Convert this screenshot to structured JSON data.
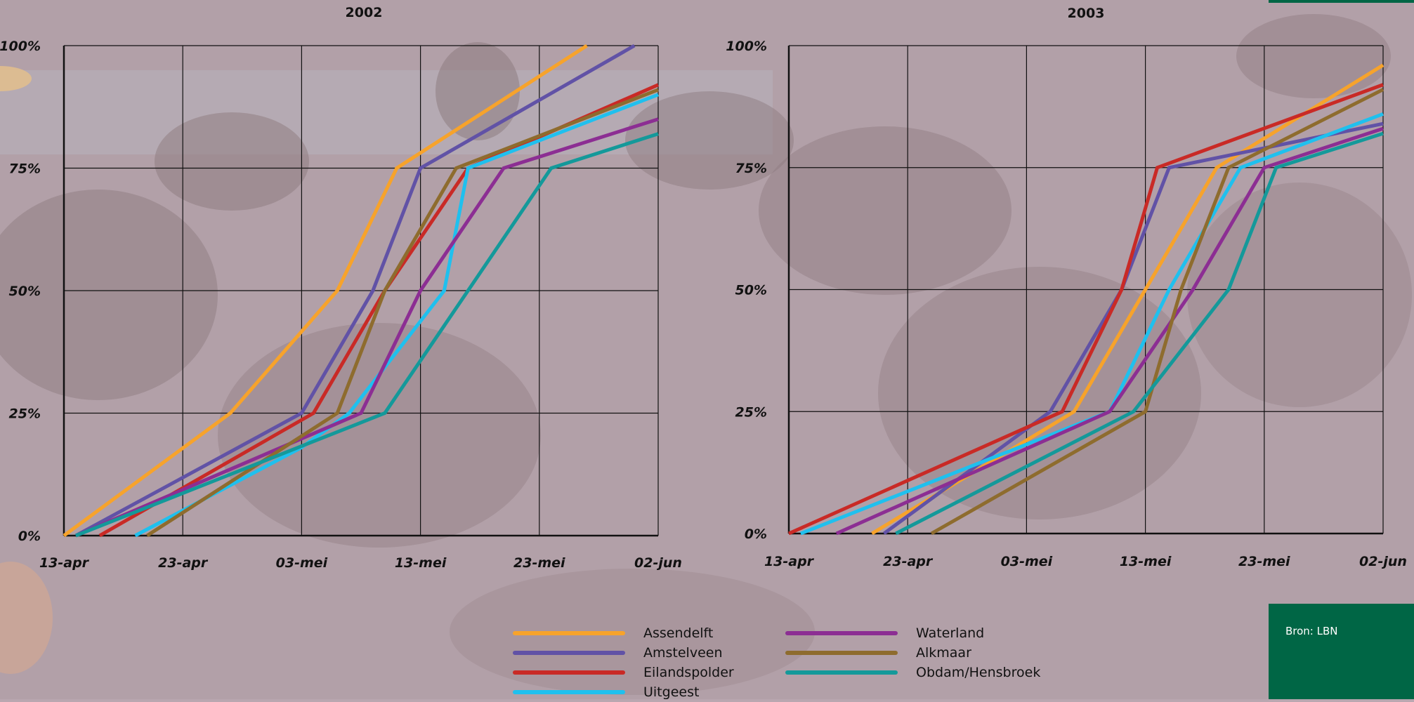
{
  "colors": {
    "Assendelft": "#f7a32b",
    "Amstelveen": "#6152a6",
    "Eilandspolder": "#c92a26",
    "Uitgeest": "#1fc0ee",
    "Waterland": "#8c2e93",
    "Alkmaar": "#8e6c2e",
    "Obdam/Hensbroek": "#14999a",
    "source_box": "#006645"
  },
  "source": "Bron: LBN",
  "chart_data": [
    {
      "type": "line",
      "title": "2002",
      "x_type": "date",
      "xlim": [
        "2002-04-13",
        "2002-06-02"
      ],
      "ylim": [
        0,
        1
      ],
      "yticks": [
        "0%",
        "25%",
        "50%",
        "75%",
        "100%"
      ],
      "xticks": [
        "13-apr",
        "23-apr",
        "03-mei",
        "13-mei",
        "23-mei",
        "02-jun"
      ],
      "xlabel": "",
      "ylabel": "",
      "grid": true,
      "series": [
        {
          "name": "Assendelft",
          "points": [
            [
              "2002-04-13",
              0
            ],
            [
              "2002-04-27",
              0.25
            ],
            [
              "2002-05-06",
              0.5
            ],
            [
              "2002-05-11",
              0.75
            ],
            [
              "2002-05-27",
              1.0
            ]
          ]
        },
        {
          "name": "Amstelveen",
          "points": [
            [
              "2002-04-14",
              0
            ],
            [
              "2002-05-03",
              0.25
            ],
            [
              "2002-05-09",
              0.5
            ],
            [
              "2002-05-13",
              0.75
            ],
            [
              "2002-05-31",
              1.0
            ]
          ]
        },
        {
          "name": "Eilandspolder",
          "points": [
            [
              "2002-04-16",
              0
            ],
            [
              "2002-05-04",
              0.25
            ],
            [
              "2002-05-10",
              0.5
            ],
            [
              "2002-05-17",
              0.75
            ],
            [
              "2002-06-02",
              0.92
            ]
          ]
        },
        {
          "name": "Uitgeest",
          "points": [
            [
              "2002-04-19",
              0
            ],
            [
              "2002-05-03",
              0.18
            ],
            [
              "2002-05-07",
              0.25
            ],
            [
              "2002-05-15",
              0.5
            ],
            [
              "2002-05-17",
              0.75
            ],
            [
              "2002-06-02",
              0.9
            ]
          ]
        },
        {
          "name": "Waterland",
          "points": [
            [
              "2002-04-14",
              0
            ],
            [
              "2002-05-08",
              0.25
            ],
            [
              "2002-05-13",
              0.5
            ],
            [
              "2002-05-20",
              0.75
            ],
            [
              "2002-06-02",
              0.85
            ]
          ]
        },
        {
          "name": "Alkmaar",
          "points": [
            [
              "2002-04-20",
              0
            ],
            [
              "2002-05-06",
              0.25
            ],
            [
              "2002-05-10",
              0.5
            ],
            [
              "2002-05-16",
              0.75
            ],
            [
              "2002-06-02",
              0.91
            ]
          ]
        },
        {
          "name": "Obdam/Hensbroek",
          "points": [
            [
              "2002-04-14",
              0
            ],
            [
              "2002-05-10",
              0.25
            ],
            [
              "2002-05-17",
              0.5
            ],
            [
              "2002-05-24",
              0.75
            ],
            [
              "2002-06-02",
              0.82
            ]
          ]
        }
      ]
    },
    {
      "type": "line",
      "title": "2003",
      "x_type": "date",
      "xlim": [
        "2003-04-13",
        "2003-06-02"
      ],
      "ylim": [
        0,
        1
      ],
      "yticks": [
        "0%",
        "25%",
        "50%",
        "75%",
        "100%"
      ],
      "xticks": [
        "13-apr",
        "23-apr",
        "03-mei",
        "13-mei",
        "23-mei",
        "02-jun"
      ],
      "xlabel": "",
      "ylabel": "",
      "grid": true,
      "series": [
        {
          "name": "Assendelft",
          "points": [
            [
              "2003-04-20",
              0
            ],
            [
              "2003-05-07",
              0.25
            ],
            [
              "2003-05-13",
              0.5
            ],
            [
              "2003-05-19",
              0.75
            ],
            [
              "2003-06-02",
              0.96
            ]
          ]
        },
        {
          "name": "Amstelveen",
          "points": [
            [
              "2003-04-21",
              0
            ],
            [
              "2003-05-05",
              0.25
            ],
            [
              "2003-05-11",
              0.5
            ],
            [
              "2003-05-15",
              0.75
            ],
            [
              "2003-06-02",
              0.84
            ]
          ]
        },
        {
          "name": "Eilandspolder",
          "points": [
            [
              "2003-04-13",
              0
            ],
            [
              "2003-05-06",
              0.25
            ],
            [
              "2003-05-11",
              0.5
            ],
            [
              "2003-05-14",
              0.75
            ],
            [
              "2003-06-02",
              0.92
            ]
          ]
        },
        {
          "name": "Uitgeest",
          "points": [
            [
              "2003-04-14",
              0
            ],
            [
              "2003-05-10",
              0.25
            ],
            [
              "2003-05-15",
              0.5
            ],
            [
              "2003-05-21",
              0.75
            ],
            [
              "2003-06-02",
              0.86
            ]
          ]
        },
        {
          "name": "Waterland",
          "points": [
            [
              "2003-04-17",
              0
            ],
            [
              "2003-05-10",
              0.25
            ],
            [
              "2003-05-17",
              0.5
            ],
            [
              "2003-05-23",
              0.75
            ],
            [
              "2003-06-02",
              0.83
            ]
          ]
        },
        {
          "name": "Alkmaar",
          "points": [
            [
              "2003-04-25",
              0
            ],
            [
              "2003-05-13",
              0.25
            ],
            [
              "2003-05-16",
              0.5
            ],
            [
              "2003-05-20",
              0.75
            ],
            [
              "2003-06-02",
              0.91
            ]
          ]
        },
        {
          "name": "Obdam/Hensbroek",
          "points": [
            [
              "2003-04-22",
              0
            ],
            [
              "2003-05-12",
              0.25
            ],
            [
              "2003-05-20",
              0.5
            ],
            [
              "2003-05-24",
              0.75
            ],
            [
              "2003-06-02",
              0.82
            ]
          ]
        }
      ]
    }
  ],
  "legend": [
    {
      "label": "Assendelft"
    },
    {
      "label": "Amstelveen"
    },
    {
      "label": "Eilandspolder"
    },
    {
      "label": "Uitgeest"
    },
    {
      "label": "Waterland"
    },
    {
      "label": "Alkmaar"
    },
    {
      "label": "Obdam/Hensbroek"
    }
  ]
}
